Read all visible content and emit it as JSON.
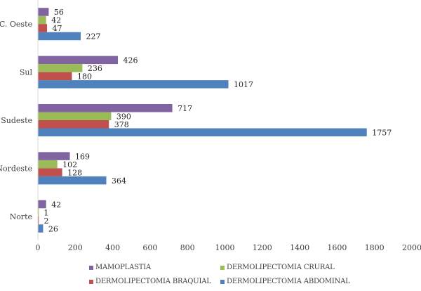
{
  "chart_data": {
    "type": "bar",
    "orientation": "horizontal",
    "title": "",
    "xlabel": "",
    "ylabel": "",
    "categories": [
      "C. Oeste",
      "Sul",
      "Sudeste",
      "Nordeste",
      "Norte"
    ],
    "series": [
      {
        "name": "MAMOPLASTIA",
        "color": "#8064A2",
        "values": [
          56,
          426,
          717,
          169,
          42
        ]
      },
      {
        "name": "DERMOLIPECTOMIA CRURAL",
        "color": "#9BBB59",
        "values": [
          42,
          236,
          390,
          102,
          1
        ]
      },
      {
        "name": "DERMOLIPECTOMIA BRAQUIAL",
        "color": "#C0504D",
        "values": [
          47,
          180,
          378,
          128,
          2
        ]
      },
      {
        "name": "DERMOLIPECTOMIA ABDOMINAL",
        "color": "#4F81BD",
        "values": [
          227,
          1017,
          1757,
          364,
          26
        ]
      }
    ],
    "xlim": [
      0,
      2000
    ],
    "x_ticks": [
      "0",
      "200",
      "400",
      "600",
      "800",
      "1000",
      "1200",
      "1400",
      "1600",
      "1800",
      "2000"
    ],
    "grid": false,
    "data_labels": true,
    "legend_position": "bottom"
  }
}
